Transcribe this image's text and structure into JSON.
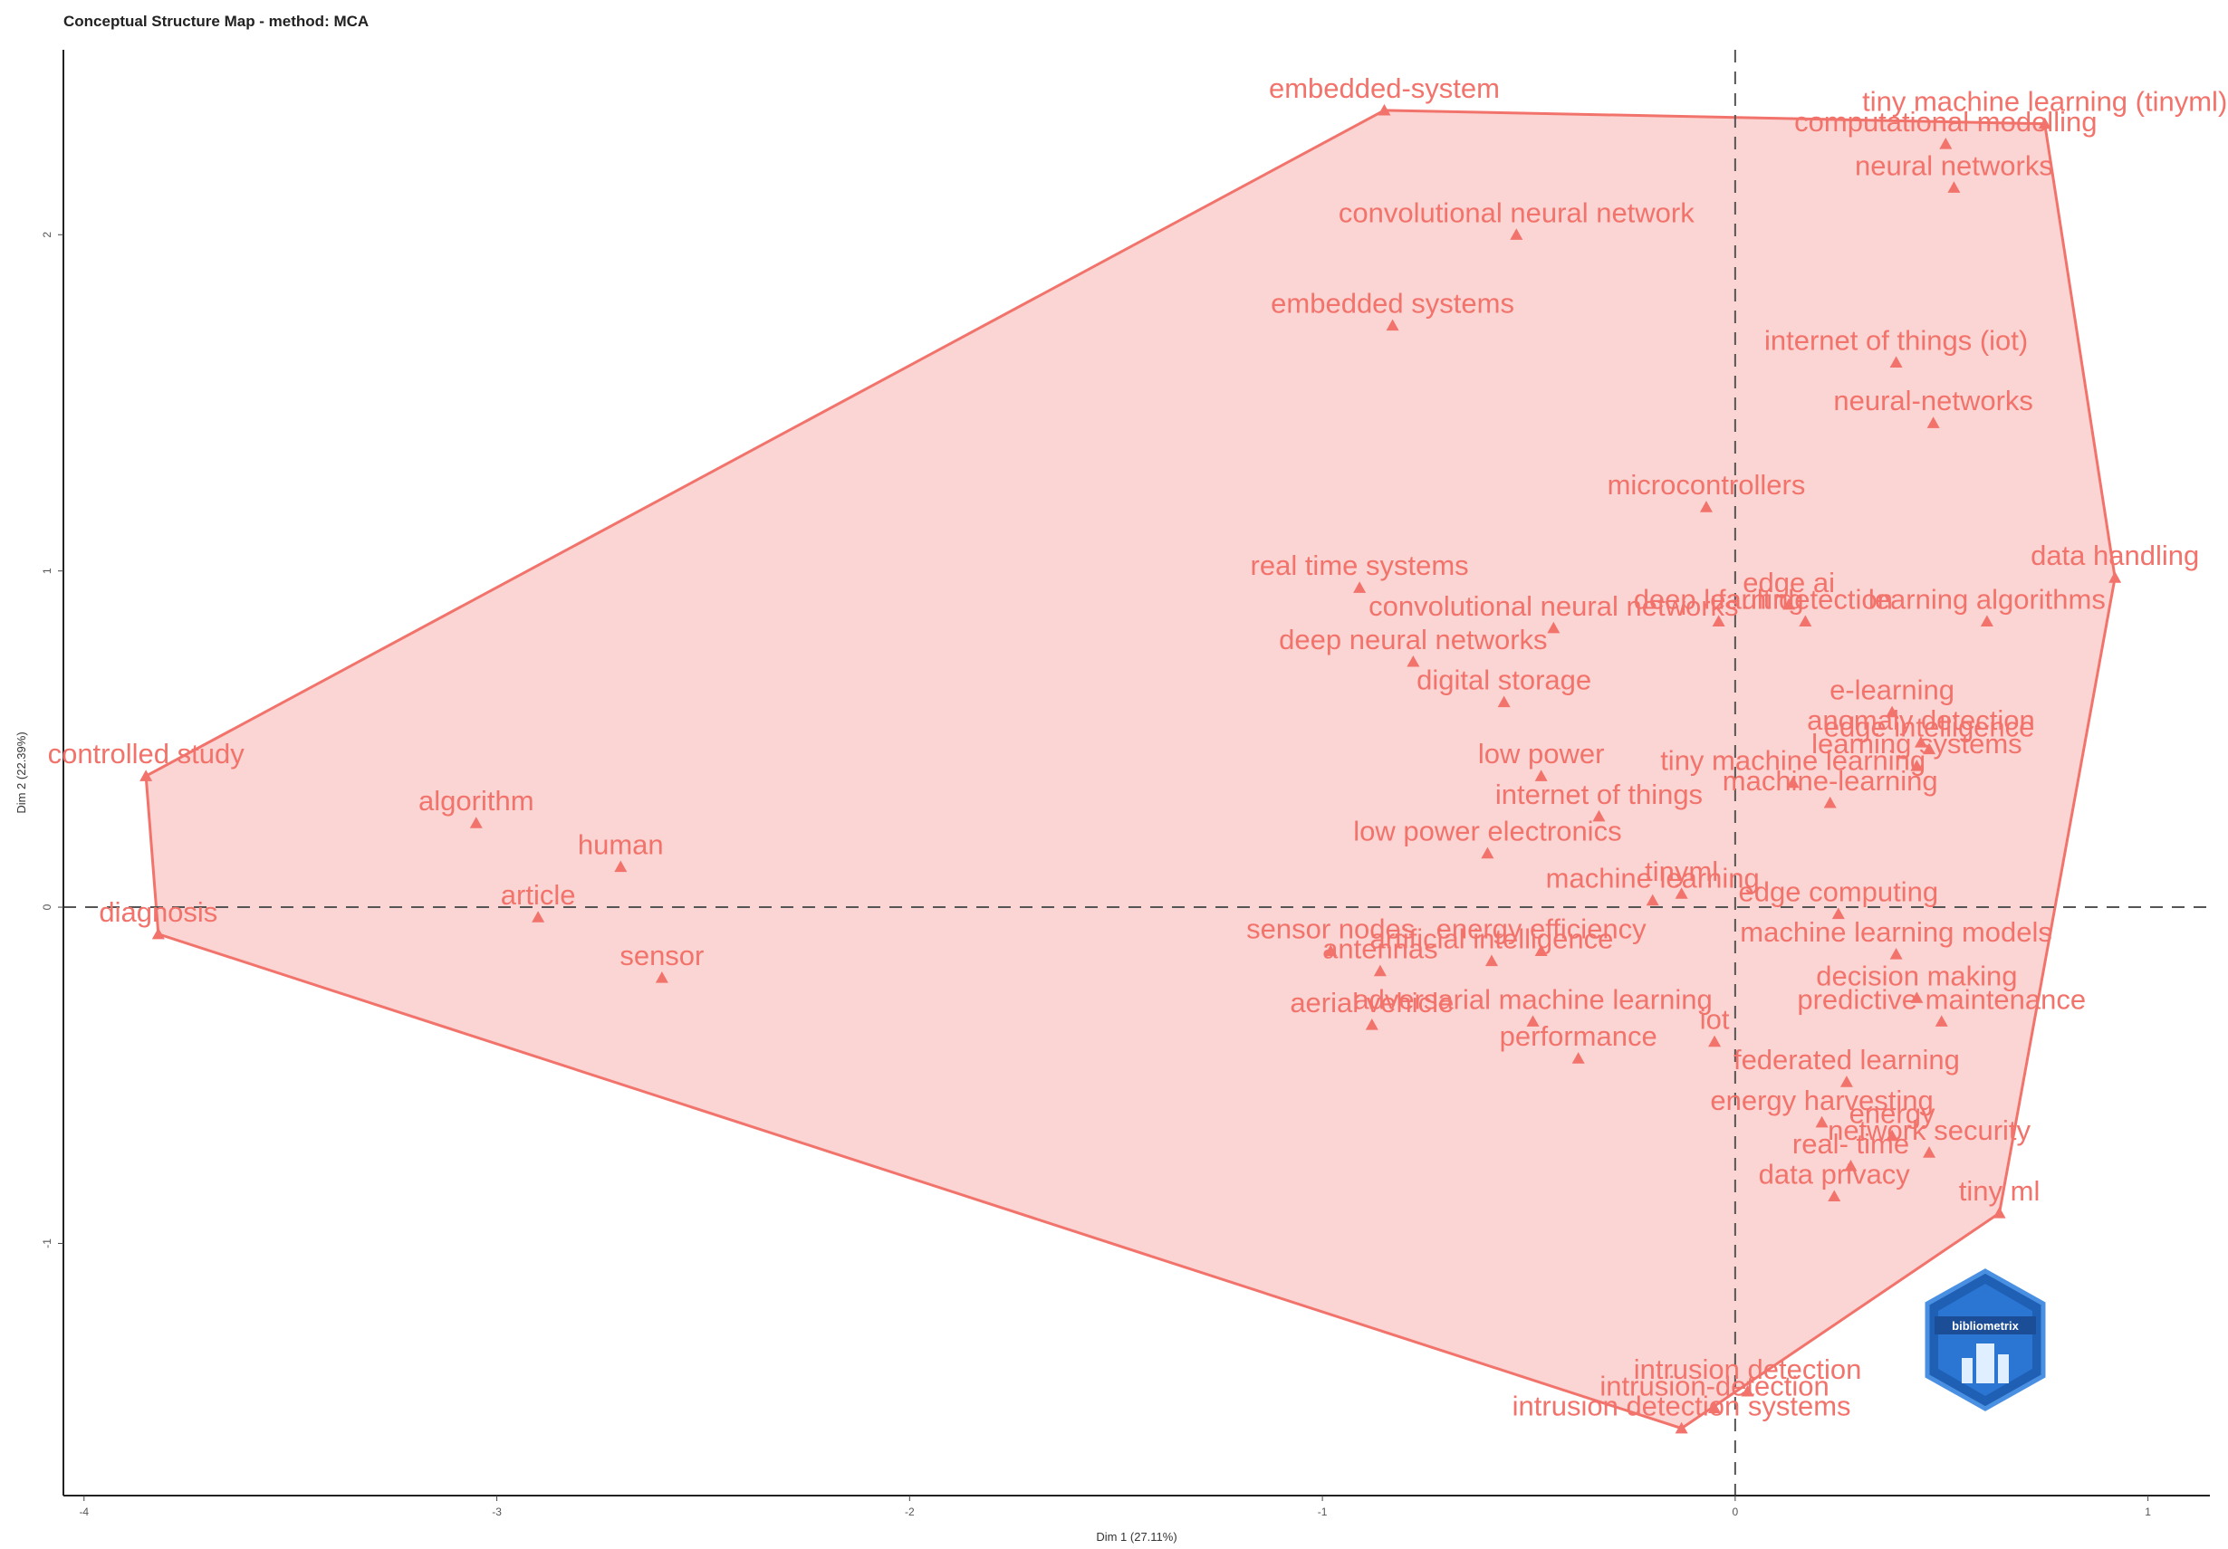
{
  "title": "Conceptual Structure Map - method: MCA",
  "logo_text": "bibliometrix",
  "chart_data": {
    "type": "scatter",
    "title": "Conceptual Structure Map - method: MCA",
    "xlabel": "Dim 1 (27.11%)",
    "ylabel": "Dim 2 (22.39%)",
    "xlim": [
      -4.05,
      1.15
    ],
    "ylim": [
      -1.75,
      2.55
    ],
    "x_ticks": [
      -4,
      -3,
      -2,
      -1,
      0,
      1
    ],
    "y_ticks": [
      -1,
      0,
      1,
      2
    ],
    "reference_lines": {
      "x": 0,
      "y": 0,
      "style": "dashed"
    },
    "colors": {
      "cluster": "#f2736b",
      "fill": "#fbd3d1",
      "reference": "#555555"
    },
    "clusters": [
      {
        "hull": [
          "controlled study",
          "embedded-system",
          "tiny machine learning (tinyml)",
          "data handling",
          "tiny ml",
          "intrusion detection systems",
          "diagnosis"
        ]
      }
    ],
    "points": [
      {
        "label": "embedded-system",
        "x": -0.85,
        "y": 2.37
      },
      {
        "label": "tiny machine learning (tinyml)",
        "x": 0.75,
        "y": 2.33
      },
      {
        "label": "computational modelling",
        "x": 0.51,
        "y": 2.27
      },
      {
        "label": "neural networks",
        "x": 0.53,
        "y": 2.14
      },
      {
        "label": "convolutional neural network",
        "x": -0.53,
        "y": 2.0
      },
      {
        "label": "embedded systems",
        "x": -0.83,
        "y": 1.73
      },
      {
        "label": "internet of things (iot)",
        "x": 0.39,
        "y": 1.62
      },
      {
        "label": "neural-networks",
        "x": 0.48,
        "y": 1.44
      },
      {
        "label": "microcontrollers",
        "x": -0.07,
        "y": 1.19
      },
      {
        "label": "data handling",
        "x": 0.92,
        "y": 0.98
      },
      {
        "label": "real time systems",
        "x": -0.91,
        "y": 0.95
      },
      {
        "label": "convolutional neural networks",
        "x": -0.44,
        "y": 0.83
      },
      {
        "label": "edge ai",
        "x": 0.13,
        "y": 0.9
      },
      {
        "label": "fault detection",
        "x": 0.17,
        "y": 0.85
      },
      {
        "label": "learning algorithms",
        "x": 0.61,
        "y": 0.85
      },
      {
        "label": "deep neural networks",
        "x": -0.78,
        "y": 0.73
      },
      {
        "label": "deep learning",
        "x": -0.04,
        "y": 0.85
      },
      {
        "label": "e-learning",
        "x": 0.38,
        "y": 0.58
      },
      {
        "label": "anomaly detection",
        "x": 0.45,
        "y": 0.49
      },
      {
        "label": "digital storage",
        "x": -0.56,
        "y": 0.61
      },
      {
        "label": "tiny machine learning",
        "x": 0.14,
        "y": 0.37
      },
      {
        "label": "edge intelligence",
        "x": 0.47,
        "y": 0.47
      },
      {
        "label": "learning systems",
        "x": 0.44,
        "y": 0.42
      },
      {
        "label": "low power",
        "x": -0.47,
        "y": 0.39
      },
      {
        "label": "internet of things",
        "x": -0.33,
        "y": 0.27
      },
      {
        "label": "machine-learning",
        "x": 0.23,
        "y": 0.31
      },
      {
        "label": "low power electronics",
        "x": -0.6,
        "y": 0.16
      },
      {
        "label": "tinyml",
        "x": -0.13,
        "y": 0.04
      },
      {
        "label": "machine learning",
        "x": -0.2,
        "y": 0.02
      },
      {
        "label": "edge computing",
        "x": 0.25,
        "y": -0.02
      },
      {
        "label": "sensor nodes",
        "x": -0.98,
        "y": -0.13
      },
      {
        "label": "energy efficiency",
        "x": -0.47,
        "y": -0.13
      },
      {
        "label": "machine learning models",
        "x": 0.39,
        "y": -0.14
      },
      {
        "label": "antennas",
        "x": -0.86,
        "y": -0.19
      },
      {
        "label": "artificial intelligence",
        "x": -0.59,
        "y": -0.16
      },
      {
        "label": "decision making",
        "x": 0.44,
        "y": -0.27
      },
      {
        "label": "aerial vehicle",
        "x": -0.88,
        "y": -0.35
      },
      {
        "label": "iot",
        "x": -0.05,
        "y": -0.4
      },
      {
        "label": "predictive maintenance",
        "x": 0.5,
        "y": -0.34
      },
      {
        "label": "adversarial machine learning",
        "x": -0.49,
        "y": -0.34
      },
      {
        "label": "performance",
        "x": -0.38,
        "y": -0.45
      },
      {
        "label": "federated learning",
        "x": 0.27,
        "y": -0.52
      },
      {
        "label": "energy",
        "x": 0.38,
        "y": -0.68
      },
      {
        "label": "energy harvesting",
        "x": 0.21,
        "y": -0.64
      },
      {
        "label": "network security",
        "x": 0.47,
        "y": -0.73
      },
      {
        "label": "real- time",
        "x": 0.28,
        "y": -0.77
      },
      {
        "label": "data privacy",
        "x": 0.24,
        "y": -0.86
      },
      {
        "label": "tiny ml",
        "x": 0.64,
        "y": -0.91
      },
      {
        "label": "intrusion detection",
        "x": 0.03,
        "y": -1.44
      },
      {
        "label": "intrusion-detection",
        "x": -0.05,
        "y": -1.49
      },
      {
        "label": "intrusion detection systems",
        "x": -0.13,
        "y": -1.55
      },
      {
        "label": "controlled study",
        "x": -3.85,
        "y": 0.39
      },
      {
        "label": "diagnosis",
        "x": -3.82,
        "y": -0.08
      },
      {
        "label": "algorithm",
        "x": -3.05,
        "y": 0.25
      },
      {
        "label": "human",
        "x": -2.7,
        "y": 0.12
      },
      {
        "label": "article",
        "x": -2.9,
        "y": -0.03
      },
      {
        "label": "sensor",
        "x": -2.6,
        "y": -0.21
      }
    ]
  }
}
